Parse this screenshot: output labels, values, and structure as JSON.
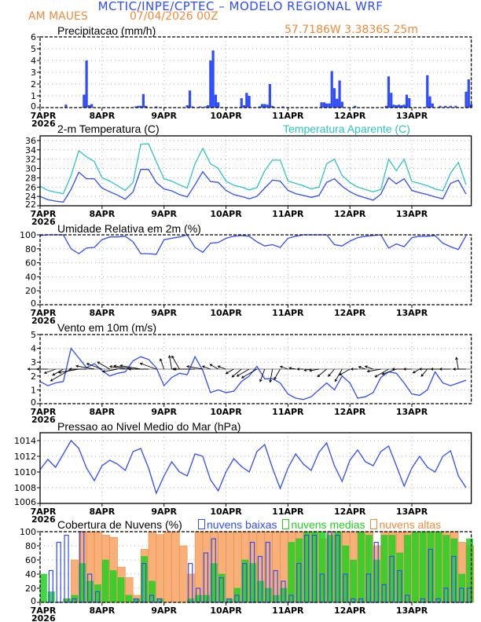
{
  "header": {
    "title": "MCTIC/INPE/CPTEC – MODELO REGIONAL WRF",
    "location": "AM MAUES",
    "run": "07/04/2026 00Z",
    "coords": "57.7186W 3.3836S 25m"
  },
  "colors": {
    "blue": "#2f4cff",
    "cyan": "#2cc4c4",
    "orange": "#f08a3c",
    "green": "#22d022",
    "grid": "#b0b0b0"
  },
  "x_axis": {
    "ticks": [
      "7APR",
      "8APR",
      "9APR",
      "10APR",
      "11APR",
      "12APR",
      "13APR"
    ],
    "year": "2026",
    "start": "2026-04-07 00Z",
    "end": "2026-04-13 23Z"
  },
  "chart_data": [
    {
      "type": "bar",
      "title": "Precipitacao (mm/h)",
      "ylim": [
        0,
        6
      ],
      "yticks": [
        "0",
        "1",
        "2",
        "3",
        "4",
        "5",
        "6"
      ],
      "grid": true,
      "points": [
        [
          "2026-04-07 10Z",
          0.25
        ],
        [
          "2026-04-07 16Z",
          0.05
        ],
        [
          "2026-04-07 17Z",
          1.1
        ],
        [
          "2026-04-07 18Z",
          4.0
        ],
        [
          "2026-04-07 19Z",
          0.2
        ],
        [
          "2026-04-07 20Z",
          0.3
        ],
        [
          "2026-04-08 13Z",
          0.1
        ],
        [
          "2026-04-08 14Z",
          0.15
        ],
        [
          "2026-04-08 15Z",
          0.15
        ],
        [
          "2026-04-08 16Z",
          1.15
        ],
        [
          "2026-04-08 17Z",
          0.15
        ],
        [
          "2026-04-08 21Z",
          0.1
        ],
        [
          "2026-04-09 09Z",
          0.2
        ],
        [
          "2026-04-09 10Z",
          1.45
        ],
        [
          "2026-04-09 11Z",
          0.1
        ],
        [
          "2026-04-09 14Z",
          0.1
        ],
        [
          "2026-04-09 16Z",
          0.1
        ],
        [
          "2026-04-09 17Z",
          0.2
        ],
        [
          "2026-04-09 18Z",
          4.0
        ],
        [
          "2026-04-09 19Z",
          4.85
        ],
        [
          "2026-04-09 20Z",
          1.1
        ],
        [
          "2026-04-09 21Z",
          0.45
        ],
        [
          "2026-04-10 06Z",
          0.8
        ],
        [
          "2026-04-10 07Z",
          0.2
        ],
        [
          "2026-04-10 08Z",
          1.25
        ],
        [
          "2026-04-10 09Z",
          1.0
        ],
        [
          "2026-04-10 13Z",
          0.1
        ],
        [
          "2026-04-10 14Z",
          0.3
        ],
        [
          "2026-04-10 15Z",
          0.3
        ],
        [
          "2026-04-10 16Z",
          0.25
        ],
        [
          "2026-04-10 17Z",
          2.0
        ],
        [
          "2026-04-10 18Z",
          0.15
        ],
        [
          "2026-04-10 22Z",
          0.1
        ],
        [
          "2026-04-11 13Z",
          0.45
        ],
        [
          "2026-04-11 14Z",
          0.45
        ],
        [
          "2026-04-11 15Z",
          0.35
        ],
        [
          "2026-04-11 16Z",
          0.35
        ],
        [
          "2026-04-11 17Z",
          3.1
        ],
        [
          "2026-04-11 18Z",
          1.65
        ],
        [
          "2026-04-11 19Z",
          0.75
        ],
        [
          "2026-04-11 20Z",
          2.3
        ],
        [
          "2026-04-11 21Z",
          0.5
        ],
        [
          "2026-04-12 02Z",
          0.15
        ],
        [
          "2026-04-12 14Z",
          0.15
        ],
        [
          "2026-04-12 15Z",
          2.65
        ],
        [
          "2026-04-12 16Z",
          1.25
        ],
        [
          "2026-04-12 17Z",
          0.25
        ],
        [
          "2026-04-12 18Z",
          0.2
        ],
        [
          "2026-04-12 19Z",
          0.25
        ],
        [
          "2026-04-12 20Z",
          0.2
        ],
        [
          "2026-04-12 21Z",
          0.25
        ],
        [
          "2026-04-12 22Z",
          1.1
        ],
        [
          "2026-04-12 23Z",
          0.8
        ],
        [
          "2026-04-13 06Z",
          2.75
        ],
        [
          "2026-04-13 07Z",
          0.95
        ],
        [
          "2026-04-13 08Z",
          0.35
        ],
        [
          "2026-04-13 11Z",
          0.15
        ],
        [
          "2026-04-13 13Z",
          0.15
        ],
        [
          "2026-04-13 15Z",
          0.15
        ],
        [
          "2026-04-13 17Z",
          0.15
        ],
        [
          "2026-04-13 21Z",
          1.35
        ],
        [
          "2026-04-13 22Z",
          2.4
        ],
        [
          "2026-04-13 23Z",
          0.3
        ]
      ]
    },
    {
      "type": "line",
      "title": "2-m Temperatura (C)",
      "title2": "Temperatura Aparente (C)",
      "ylim": [
        22,
        37
      ],
      "yticks": [
        "22",
        "24",
        "26",
        "28",
        "30",
        "32",
        "34",
        "36"
      ],
      "grid": true,
      "x_start": "2026-04-07 00Z",
      "x_step_hours": 3,
      "series": [
        {
          "name": "2-m Temperatura (C)",
          "color": "#2f4cff",
          "values": [
            24.0,
            23.3,
            23.0,
            22.8,
            25.5,
            29.2,
            27.8,
            27.8,
            25.8,
            25.0,
            24.3,
            23.4,
            25.0,
            29.8,
            29.8,
            27.0,
            25.6,
            25.2,
            24.4,
            23.9,
            26.5,
            29.3,
            27.2,
            27.0,
            25.3,
            24.4,
            24.0,
            23.5,
            24.0,
            25.8,
            27.5,
            27.3,
            25.3,
            24.6,
            24.2,
            23.8,
            24.2,
            27.0,
            27.8,
            26.2,
            25.0,
            24.2,
            23.7,
            23.2,
            24.5,
            28.0,
            26.7,
            27.8,
            25.3,
            24.8,
            24.4,
            23.9,
            23.5,
            26.8,
            27.5,
            24.5
          ]
        },
        {
          "name": "Temperatura Aparente (C)",
          "color": "#2cc4c4",
          "values": [
            26.2,
            25.3,
            24.9,
            24.6,
            28.5,
            33.8,
            32.5,
            31.5,
            28.0,
            27.3,
            26.3,
            25.3,
            27.0,
            35.2,
            35.3,
            31.5,
            27.8,
            27.3,
            26.5,
            25.8,
            31.0,
            34.3,
            31.0,
            30.0,
            27.3,
            26.4,
            26.0,
            25.4,
            25.9,
            29.5,
            31.8,
            31.8,
            27.3,
            26.8,
            26.3,
            25.6,
            26.0,
            31.0,
            32.0,
            28.5,
            27.0,
            26.0,
            25.5,
            25.0,
            25.5,
            32.0,
            29.5,
            32.0,
            27.2,
            26.8,
            26.3,
            25.6,
            25.2,
            29.0,
            31.3,
            26.5
          ]
        }
      ]
    },
    {
      "type": "line",
      "title": "Umidade Relativa em 2m (%)",
      "ylim": [
        0,
        100
      ],
      "yticks": [
        "0",
        "20",
        "40",
        "60",
        "80",
        "100"
      ],
      "grid": true,
      "x_start": "2026-04-07 00Z",
      "x_step_hours": 3,
      "series": [
        {
          "color": "#2f4cff",
          "values": [
            99,
            100,
            100,
            100,
            80,
            73,
            81,
            82,
            93,
            97,
            97,
            98,
            90,
            73,
            73,
            72,
            93,
            95,
            97,
            100,
            82,
            75,
            88,
            89,
            95,
            98,
            99,
            98,
            90,
            84,
            86,
            82,
            95,
            98,
            100,
            100,
            100,
            100,
            86,
            84,
            91,
            96,
            98,
            99,
            100,
            81,
            87,
            83,
            96,
            98,
            98,
            99,
            88,
            83,
            79,
            99
          ]
        }
      ]
    },
    {
      "type": "line",
      "title": "Vento em 10m (m/s)",
      "ylim": [
        0,
        5
      ],
      "yticks": [
        "0",
        "1",
        "2",
        "3",
        "4",
        "5"
      ],
      "grid": true,
      "x_start": "2026-04-07 00Z",
      "x_step_hours": 3,
      "series": [
        {
          "color": "#2f4cff",
          "values": [
            1.6,
            1.3,
            1.5,
            1.6,
            4.0,
            3.3,
            2.6,
            2.9,
            2.4,
            2.0,
            2.2,
            2.3,
            3.1,
            3.4,
            3.2,
            2.6,
            1.3,
            1.9,
            2.2,
            2.1,
            3.4,
            2.4,
            0.8,
            1.0,
            0.8,
            0.9,
            1.6,
            2.0,
            2.7,
            1.8,
            1.8,
            1.5,
            0.7,
            0.4,
            0.3,
            0.5,
            1.0,
            1.5,
            1.0,
            2.0,
            1.5,
            0.4,
            0.5,
            0.8,
            1.9,
            2.3,
            2.2,
            1.5,
            0.7,
            0.6,
            1.0,
            2.3,
            1.5,
            1.3,
            1.5,
            1.7
          ]
        }
      ],
      "wind_direction_deg": [
        90,
        90,
        70,
        60,
        60,
        80,
        90,
        100,
        110,
        120,
        80,
        100,
        100,
        100,
        90,
        110,
        160,
        170,
        150,
        90,
        90,
        100,
        110,
        120,
        110,
        60,
        50,
        60,
        60,
        20,
        10,
        30,
        110,
        100,
        90,
        80,
        80,
        50,
        40,
        30,
        60,
        90,
        110,
        110,
        80,
        60,
        70,
        90,
        90,
        60,
        40,
        90,
        90,
        90,
        170,
        90
      ]
    },
    {
      "type": "line",
      "title": "Pressao ao Nivel Medio do Mar (hPa)",
      "ylim": [
        1006,
        1015
      ],
      "yticks": [
        "1006",
        "1008",
        "1010",
        "1012",
        "1014"
      ],
      "grid": true,
      "x_start": "2026-04-07 00Z",
      "x_step_hours": 3,
      "series": [
        {
          "color": "#2f4cff",
          "values": [
            1010.3,
            1011.6,
            1010.6,
            1012.3,
            1014.0,
            1013.0,
            1010.5,
            1008.9,
            1010.8,
            1011.5,
            1011.0,
            1010.2,
            1012.6,
            1013.0,
            1010.5,
            1007.3,
            1009.5,
            1011.3,
            1010.0,
            1009.5,
            1012.3,
            1012.0,
            1009.0,
            1007.6,
            1010.0,
            1011.7,
            1010.7,
            1010.0,
            1012.6,
            1013.5,
            1010.5,
            1007.9,
            1010.5,
            1012.3,
            1011.0,
            1010.2,
            1012.5,
            1013.7,
            1010.8,
            1008.8,
            1011.5,
            1012.8,
            1011.3,
            1010.8,
            1012.6,
            1013.3,
            1010.8,
            1008.2,
            1010.5,
            1012.0,
            1010.6,
            1010.0,
            1012.0,
            1012.7,
            1009.5,
            1008.0
          ]
        }
      ]
    },
    {
      "type": "bar",
      "title": "Cobertura de Nuvens (%)",
      "ylim": [
        0,
        100
      ],
      "yticks": [
        "0",
        "20",
        "40",
        "60",
        "80",
        "100"
      ],
      "grid": true,
      "x_start": "2026-04-07 00Z",
      "x_step_hours": 3,
      "series": [
        {
          "name": "nuvens altas",
          "color": "#f08a3c",
          "values": [
            0,
            0,
            0,
            5,
            60,
            100,
            100,
            100,
            95,
            92,
            50,
            35,
            10,
            75,
            100,
            96,
            100,
            100,
            80,
            40,
            100,
            100,
            100,
            100,
            100,
            100,
            100,
            100,
            100,
            100,
            100,
            100,
            100,
            100,
            100,
            100,
            90,
            100,
            100,
            100,
            100,
            100,
            100,
            80,
            100,
            100,
            100,
            100,
            100,
            100,
            100,
            100,
            100,
            100,
            85,
            80
          ]
        },
        {
          "name": "nuvens medias",
          "color": "#22d022",
          "values": [
            40,
            15,
            0,
            5,
            10,
            55,
            30,
            25,
            60,
            45,
            35,
            10,
            5,
            65,
            30,
            5,
            0,
            0,
            0,
            5,
            10,
            10,
            55,
            40,
            5,
            20,
            60,
            55,
            30,
            20,
            10,
            20,
            85,
            90,
            100,
            100,
            100,
            95,
            100,
            80,
            60,
            100,
            95,
            60,
            95,
            95,
            70,
            95,
            100,
            100,
            100,
            100,
            95,
            90,
            40,
            90
          ]
        },
        {
          "name": "nuvens baixas",
          "color": "#2f4cff",
          "values": [
            0,
            45,
            85,
            95,
            5,
            100,
            40,
            15,
            0,
            0,
            0,
            0,
            5,
            55,
            10,
            5,
            0,
            0,
            0,
            55,
            20,
            70,
            90,
            35,
            5,
            10,
            55,
            85,
            65,
            85,
            45,
            30,
            10,
            55,
            95,
            95,
            40,
            100,
            95,
            40,
            5,
            5,
            40,
            85,
            25,
            65,
            45,
            10,
            0,
            5,
            75,
            5,
            20,
            65,
            20,
            20
          ]
        }
      ]
    }
  ]
}
